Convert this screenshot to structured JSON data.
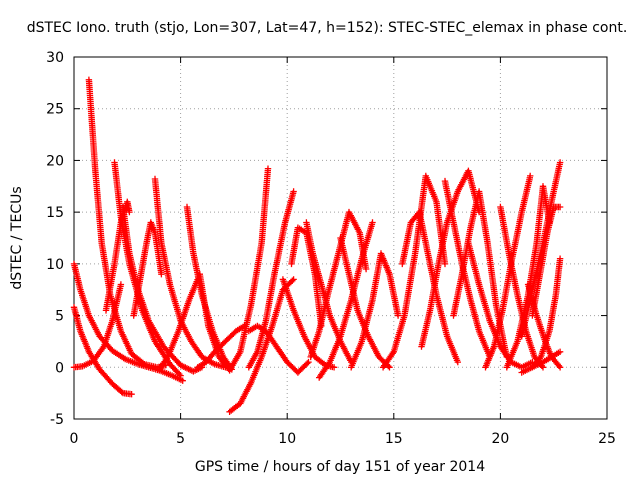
{
  "chart_data": {
    "type": "scatter",
    "title": "dSTEC Iono. truth (stjo, Lon=307, Lat=47, h=152): STEC-STEC_elemax in phase cont.",
    "xlabel": "GPS time / hours of day 151 of year 2014",
    "ylabel": "dSTEC  / TECUs",
    "xlim": [
      0,
      25
    ],
    "ylim": [
      -5,
      30
    ],
    "xticks": [
      0,
      5,
      10,
      15,
      20,
      25
    ],
    "yticks": [
      -5,
      0,
      5,
      10,
      15,
      20,
      25,
      30
    ],
    "xtick_labels": [
      "0",
      "5",
      "10",
      "15",
      "20",
      "25"
    ],
    "ytick_labels": [
      "-5",
      "0",
      "5",
      "10",
      "15",
      "20",
      "25",
      "30"
    ],
    "grid": true,
    "marker": "plus",
    "color": "#ff0000",
    "series": [
      {
        "x": [
          0.7,
          1.0,
          1.3,
          1.7,
          2.2,
          2.7,
          3.3,
          3.9,
          4.3
        ],
        "values": [
          27.8,
          19.0,
          12.0,
          7.0,
          3.5,
          1.3,
          0.3,
          0.0,
          0.2
        ]
      },
      {
        "x": [
          0.0,
          0.3,
          0.7,
          1.2,
          1.8,
          2.4,
          3.0,
          3.5,
          4.0,
          4.6,
          5.1
        ],
        "values": [
          10.0,
          7.5,
          5.0,
          3.0,
          1.6,
          0.8,
          0.3,
          0.0,
          -0.3,
          -0.8,
          -1.3
        ]
      },
      {
        "x": [
          0.0,
          0.3,
          0.7,
          1.2,
          1.8,
          2.3,
          2.7
        ],
        "values": [
          5.8,
          3.5,
          1.5,
          -0.2,
          -1.6,
          -2.5,
          -2.6
        ]
      },
      {
        "x": [
          0.0,
          0.4,
          0.9,
          1.4,
          1.8,
          2.2
        ],
        "values": [
          0.0,
          0.1,
          0.6,
          2.0,
          4.5,
          8.0
        ]
      },
      {
        "x": [
          1.9,
          2.2,
          2.6,
          3.2,
          3.8,
          4.5,
          5.0
        ],
        "values": [
          19.8,
          14.5,
          10.0,
          5.5,
          2.5,
          0.3,
          -0.8
        ]
      },
      {
        "x": [
          1.5,
          1.9,
          2.2,
          2.5,
          2.6
        ],
        "values": [
          5.5,
          10.0,
          14.0,
          16.0,
          15.0
        ]
      },
      {
        "x": [
          2.3,
          2.6,
          3.0,
          3.5,
          4.2,
          5.0,
          5.6,
          6.0
        ],
        "values": [
          15.5,
          11.0,
          7.5,
          4.5,
          2.0,
          0.2,
          -0.4,
          0.0
        ]
      },
      {
        "x": [
          2.8,
          3.1,
          3.4,
          3.6,
          3.8,
          4.1
        ],
        "values": [
          5.0,
          8.5,
          12.0,
          14.0,
          13.0,
          9.0
        ]
      },
      {
        "x": [
          3.8,
          4.1,
          4.5,
          5.0,
          5.5,
          6.0,
          6.6,
          7.1
        ],
        "values": [
          18.2,
          12.0,
          8.0,
          4.5,
          2.5,
          1.0,
          0.3,
          0.0
        ]
      },
      {
        "x": [
          4.0,
          4.4,
          4.9,
          5.4,
          5.9,
          6.3
        ],
        "values": [
          -0.2,
          1.0,
          3.5,
          6.5,
          9.0,
          4.0
        ]
      },
      {
        "x": [
          5.3,
          5.6,
          6.0,
          6.5,
          7.0,
          7.4
        ],
        "values": [
          15.5,
          11.0,
          7.0,
          3.5,
          1.0,
          -0.2
        ]
      },
      {
        "x": [
          5.8,
          6.2,
          6.6,
          7.1,
          7.6,
          8.0
        ],
        "values": [
          0.0,
          0.5,
          1.5,
          2.5,
          3.5,
          4.0
        ]
      },
      {
        "x": [
          6.3,
          6.8,
          7.3,
          7.8,
          8.3,
          8.8,
          9.1
        ],
        "values": [
          4.0,
          1.0,
          -0.3,
          1.5,
          6.0,
          12.0,
          19.2
        ]
      },
      {
        "x": [
          7.3,
          7.8,
          8.3,
          8.8,
          9.3,
          9.8,
          10.3
        ],
        "values": [
          -4.3,
          -3.5,
          -1.5,
          1.0,
          4.0,
          7.5,
          8.5
        ]
      },
      {
        "x": [
          8.2,
          8.6,
          9.0,
          9.4,
          9.9,
          10.3
        ],
        "values": [
          0.0,
          1.5,
          4.5,
          9.0,
          14.0,
          17.0
        ]
      },
      {
        "x": [
          8.2,
          8.6,
          9.0,
          9.5,
          10.0,
          10.5,
          11.0
        ],
        "values": [
          3.5,
          4.0,
          3.5,
          2.0,
          0.5,
          -0.5,
          0.5
        ]
      },
      {
        "x": [
          9.8,
          10.3,
          10.8,
          11.3,
          11.8,
          12.2
        ],
        "values": [
          8.5,
          5.5,
          3.0,
          1.0,
          0.2,
          0.0
        ]
      },
      {
        "x": [
          10.2,
          10.5,
          10.9,
          11.3,
          11.6
        ],
        "values": [
          10.0,
          13.5,
          13.0,
          9.0,
          4.0
        ]
      },
      {
        "x": [
          10.9,
          11.2,
          11.6,
          12.0,
          12.5,
          13.0
        ],
        "values": [
          14.0,
          11.0,
          8.0,
          5.0,
          2.5,
          0.5
        ]
      },
      {
        "x": [
          11.1,
          11.5,
          11.9,
          12.4,
          12.9,
          13.4,
          13.7
        ],
        "values": [
          1.0,
          3.5,
          7.0,
          11.0,
          15.0,
          13.0,
          9.5
        ]
      },
      {
        "x": [
          11.5,
          12.0,
          12.5,
          13.0,
          13.5,
          14.0
        ],
        "values": [
          -1.0,
          0.5,
          3.0,
          6.5,
          10.5,
          14.0
        ]
      },
      {
        "x": [
          12.5,
          12.9,
          13.3,
          13.8,
          14.3,
          14.8
        ],
        "values": [
          12.5,
          9.0,
          5.5,
          3.0,
          1.0,
          0.0
        ]
      },
      {
        "x": [
          13.0,
          13.5,
          14.0,
          14.4,
          14.8,
          15.2
        ],
        "values": [
          0.0,
          2.5,
          6.5,
          11.0,
          9.0,
          5.0
        ]
      },
      {
        "x": [
          14.5,
          15.0,
          15.5,
          16.0,
          16.5,
          17.0,
          17.4
        ],
        "values": [
          0.0,
          1.5,
          5.0,
          11.0,
          18.5,
          16.0,
          10.0
        ]
      },
      {
        "x": [
          15.4,
          15.8,
          16.2,
          16.6,
          17.0,
          17.5,
          18.0
        ],
        "values": [
          10.0,
          14.0,
          15.0,
          11.0,
          7.0,
          3.0,
          0.5
        ]
      },
      {
        "x": [
          16.3,
          16.7,
          17.1,
          17.5,
          18.0,
          18.5,
          19.0
        ],
        "values": [
          2.0,
          5.5,
          10.0,
          14.0,
          17.0,
          19.0,
          15.0
        ]
      },
      {
        "x": [
          17.4,
          17.8,
          18.2,
          18.6,
          19.0,
          19.5
        ],
        "values": [
          18.0,
          14.0,
          10.0,
          6.5,
          3.5,
          1.0
        ]
      },
      {
        "x": [
          17.8,
          18.2,
          18.6,
          19.0,
          19.4,
          19.8,
          20.3
        ],
        "values": [
          5.0,
          9.0,
          13.5,
          17.0,
          12.0,
          6.0,
          1.0
        ]
      },
      {
        "x": [
          18.5,
          19.0,
          19.5,
          20.0,
          20.5,
          21.0,
          21.5
        ],
        "values": [
          12.0,
          8.0,
          4.5,
          2.0,
          0.5,
          0.0,
          0.5
        ]
      },
      {
        "x": [
          19.3,
          19.7,
          20.1,
          20.5,
          21.0,
          21.4
        ],
        "values": [
          0.0,
          2.0,
          5.5,
          10.0,
          15.0,
          18.5
        ]
      },
      {
        "x": [
          20.0,
          20.4,
          20.8,
          21.2,
          21.6,
          22.0
        ],
        "values": [
          15.5,
          11.0,
          7.0,
          3.5,
          1.0,
          0.0
        ]
      },
      {
        "x": [
          20.3,
          20.8,
          21.3,
          21.7,
          22.0,
          22.3
        ],
        "values": [
          0.0,
          2.5,
          7.0,
          12.0,
          17.5,
          14.0
        ]
      },
      {
        "x": [
          21.0,
          21.5,
          22.0,
          22.5,
          22.8
        ],
        "values": [
          3.0,
          7.5,
          12.0,
          17.0,
          19.8
        ]
      },
      {
        "x": [
          21.5,
          21.9,
          22.2,
          22.5,
          22.8
        ],
        "values": [
          5.0,
          9.5,
          13.0,
          15.5,
          15.5
        ]
      },
      {
        "x": [
          21.3,
          21.7,
          22.1,
          22.4,
          22.8
        ],
        "values": [
          8.0,
          5.0,
          2.5,
          1.0,
          0.0
        ]
      },
      {
        "x": [
          21.5,
          21.9,
          22.3,
          22.6,
          22.8
        ],
        "values": [
          0.0,
          1.0,
          3.5,
          7.0,
          10.5
        ]
      },
      {
        "x": [
          21.0,
          21.5,
          22.0,
          22.4,
          22.8
        ],
        "values": [
          -0.5,
          0.0,
          0.5,
          1.0,
          1.5
        ]
      }
    ]
  }
}
